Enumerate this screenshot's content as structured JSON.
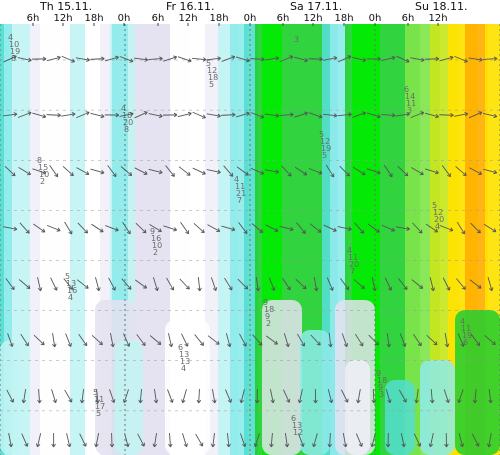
{
  "chart_data": {
    "type": "heatmap",
    "day_labels": [
      "Th 15.11.",
      "Fr 16.11.",
      "Sa 17.11.",
      "Su 18.11."
    ],
    "hour_labels": [
      "6h",
      "12h",
      "18h",
      "0h",
      "6h",
      "12h",
      "18h",
      "0h",
      "6h",
      "12h",
      "18h",
      "0h",
      "6h",
      "12h"
    ],
    "colors": {
      "calm": "#ffffff",
      "very_light": "#f1eff8",
      "light": "#e4e2f0",
      "pale_cyan": "#c2f3f3",
      "cyan": "#8eeaea",
      "teal": "#55ddd0",
      "green": "#1fcf2f",
      "bright_green": "#00ea00",
      "light_green": "#7fe54a",
      "yellow_green": "#c8e61d",
      "yellow": "#ffe200",
      "orange": "#ffb000",
      "arrow": "#555555"
    },
    "value_labels": [
      "4",
      "4",
      "4",
      "4",
      "4",
      "5",
      "5",
      "5",
      "5",
      "5",
      "6",
      "6",
      "6",
      "8",
      "9",
      "9",
      "9",
      "10",
      "10",
      "11",
      "11",
      "11",
      "11",
      "12",
      "12",
      "12",
      "13",
      "13",
      "13",
      "14",
      "15",
      "16",
      "18",
      "18",
      "19",
      "20",
      "21",
      "20",
      "19",
      "17",
      "18",
      "19",
      "20",
      "16",
      "13",
      "12",
      "11",
      "10",
      "10",
      "9",
      "9",
      "8",
      "8",
      "7",
      "7",
      "6",
      "5",
      "5",
      "5",
      "4",
      "4",
      "4",
      "3",
      "3",
      "2",
      "2",
      "2",
      "3"
    ],
    "wind_columns": 34,
    "wind_rows": 8,
    "level_rows": 9
  }
}
